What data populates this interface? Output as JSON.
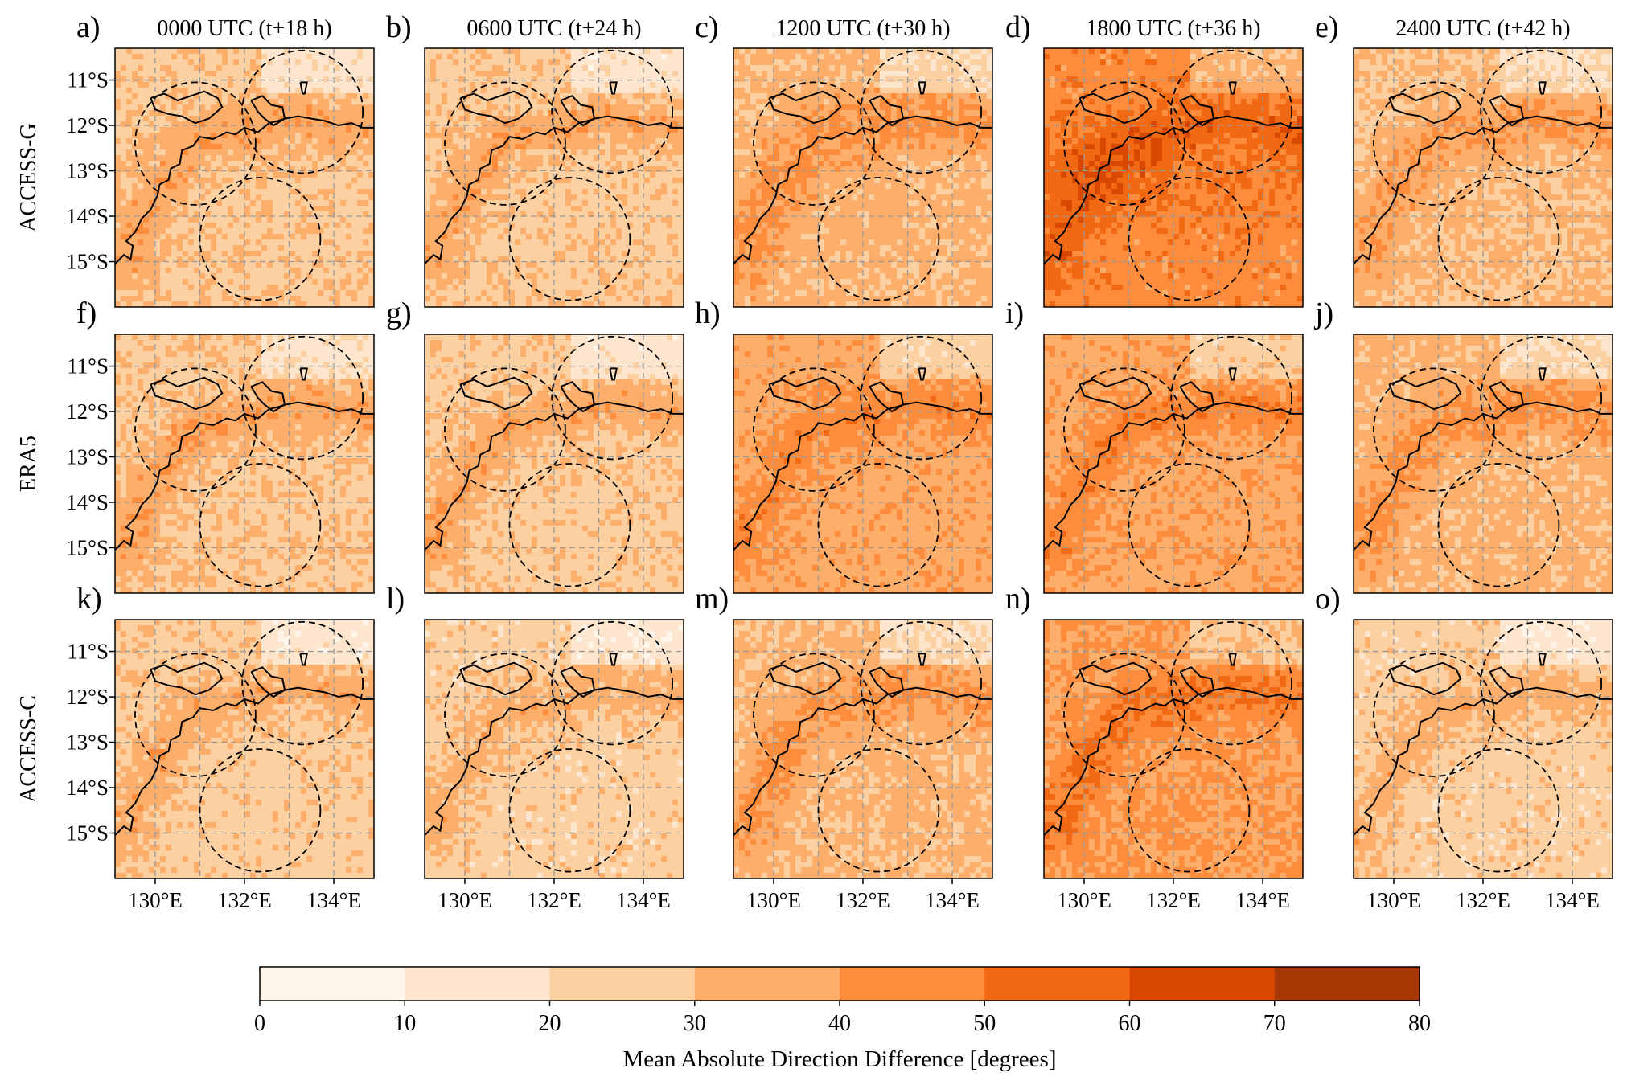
{
  "chart_data": {
    "type": "heatmap",
    "quantity": "Mean Absolute Direction Difference [degrees]",
    "columns": [
      "0000 UTC (t+18 h)",
      "0600 UTC (t+24 h)",
      "1200 UTC (t+30 h)",
      "1800 UTC (t+36 h)",
      "2400 UTC (t+42 h)"
    ],
    "rows": [
      "ACCESS-G",
      "ERA5",
      "ACCESS-C"
    ],
    "panel_letters": [
      "a)",
      "b)",
      "c)",
      "d)",
      "e)",
      "f)",
      "g)",
      "h)",
      "i)",
      "j)",
      "k)",
      "l)",
      "m)",
      "n)",
      "o)"
    ],
    "x_ticks": [
      130,
      132,
      134
    ],
    "x_tick_labels": [
      "130°E",
      "132°E",
      "134°E"
    ],
    "y_ticks": [
      11,
      12,
      13,
      14,
      15
    ],
    "y_tick_labels": [
      "11°S",
      "12°S",
      "13°S",
      "14°S",
      "15°S"
    ],
    "xlim": [
      129.1,
      134.9
    ],
    "ylim_south": [
      16.0,
      10.3
    ],
    "grid": true,
    "colorbar": {
      "label": "Mean Absolute Direction Difference [degrees]",
      "boundaries": [
        0,
        10,
        20,
        30,
        40,
        50,
        60,
        70,
        80
      ],
      "tick_labels": [
        "0",
        "10",
        "20",
        "30",
        "40",
        "50",
        "60",
        "70",
        "80"
      ],
      "colors": [
        "#fff5eb",
        "#fee6ce",
        "#fdd0a2",
        "#fdae6b",
        "#fd8d3c",
        "#f16913",
        "#d94801",
        "#a63603",
        "#7f2704"
      ],
      "orientation": "horizontal",
      "position": "bottom"
    },
    "circles": [
      {
        "lon": 130.9,
        "lat": 12.4,
        "radius_deg": 1.35
      },
      {
        "lon": 133.3,
        "lat": 11.7,
        "radius_deg": 1.35
      },
      {
        "lon": 132.35,
        "lat": 14.5,
        "radius_deg": 1.35
      }
    ],
    "approx_panel_mean_degrees": [
      [
        28,
        27,
        33,
        45,
        31
      ],
      [
        28,
        27,
        36,
        37,
        33
      ],
      [
        26,
        25,
        32,
        40,
        25
      ]
    ]
  }
}
